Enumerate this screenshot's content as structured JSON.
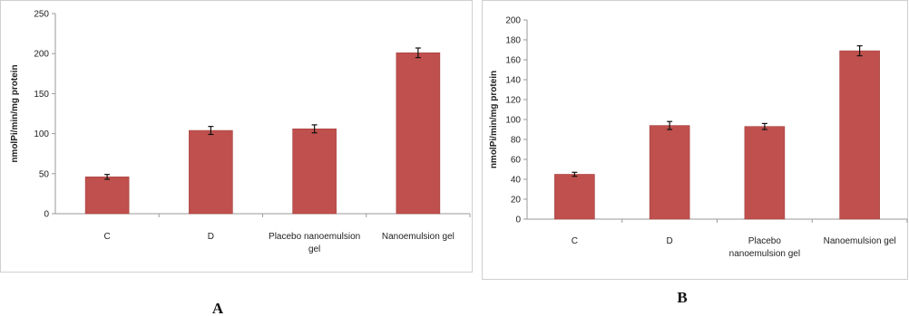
{
  "chart_data": [
    {
      "type": "bar",
      "panel_label": "A",
      "ylabel": "nmolPi/min/mg protein",
      "ylim": [
        0,
        250
      ],
      "yticks": [
        0,
        50,
        100,
        150,
        200,
        250
      ],
      "categories": [
        [
          "C"
        ],
        [
          "D"
        ],
        [
          "Placebo nanoemulsion",
          "gel"
        ],
        [
          "Nanoemulsion gel"
        ]
      ],
      "values": [
        46,
        104,
        106,
        201
      ],
      "errors": [
        3,
        5,
        5,
        6
      ],
      "color": "#c0504d"
    },
    {
      "type": "bar",
      "panel_label": "B",
      "ylabel": "nmolPi/min/mg protein",
      "ylim": [
        0,
        200
      ],
      "yticks": [
        0,
        20,
        40,
        60,
        80,
        100,
        120,
        140,
        160,
        180,
        200
      ],
      "categories": [
        [
          "C"
        ],
        [
          "D"
        ],
        [
          "Placebo",
          "nanoemulsion gel"
        ],
        [
          "Nanoemulsion gel"
        ]
      ],
      "values": [
        45,
        94,
        93,
        169
      ],
      "errors": [
        2,
        4,
        3,
        5
      ],
      "color": "#c0504d"
    }
  ]
}
